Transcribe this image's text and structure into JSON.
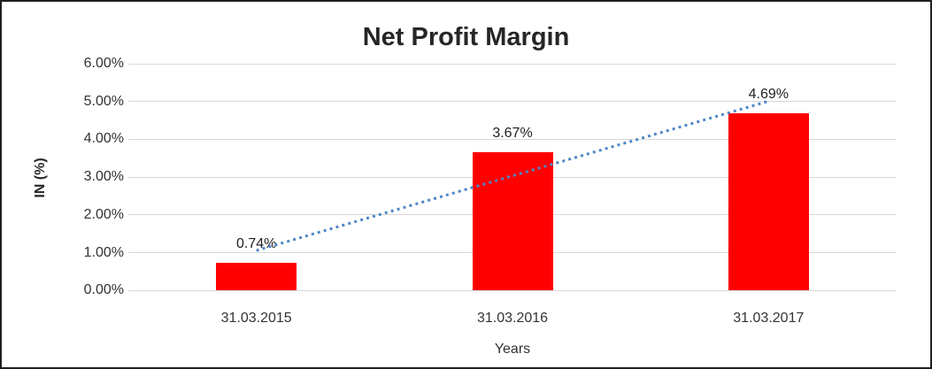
{
  "chart_data": {
    "type": "bar",
    "title": "Net Profit Margin",
    "xlabel": "Years",
    "ylabel": "IN (%)",
    "categories": [
      "31.03.2015",
      "31.03.2016",
      "31.03.2017"
    ],
    "series": [
      {
        "name": "Net Profit Margin",
        "values": [
          0.74,
          3.67,
          4.69
        ]
      }
    ],
    "data_labels": [
      "0.74%",
      "3.67%",
      "4.69%"
    ],
    "y_ticks": [
      "0.00%",
      "1.00%",
      "2.00%",
      "3.00%",
      "4.00%",
      "5.00%",
      "6.00%"
    ],
    "ylim": [
      0,
      6
    ],
    "y_tick_step": 1,
    "grid": true,
    "legend": "none",
    "trendline": {
      "type": "linear",
      "style": "dotted"
    },
    "colors": {
      "bar": "#ff0000",
      "trendline": "#4e86c6",
      "gridline": "#d9d9d9",
      "axis_text": "#333333",
      "title_text": "#262626",
      "background": "#ffffff",
      "border": "#1f1f1f"
    }
  }
}
